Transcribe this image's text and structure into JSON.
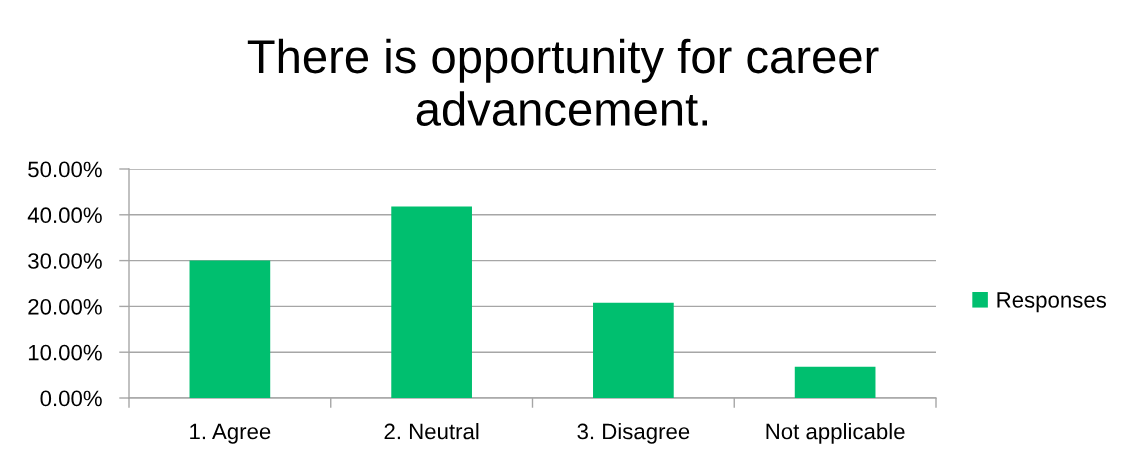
{
  "chart_data": {
    "type": "bar",
    "title": "There is opportunity for career\nadvancement.",
    "categories": [
      "1. Agree",
      "2. Neutral",
      "3. Disagree",
      "Not applicable"
    ],
    "series": [
      {
        "name": "Responses",
        "color": "#00bf6f",
        "values": [
          30.0,
          41.8,
          20.8,
          6.8
        ]
      }
    ],
    "ylim": [
      0,
      50
    ],
    "yticks": [
      {
        "value": 0,
        "label": "0.00%"
      },
      {
        "value": 10,
        "label": "10.00%"
      },
      {
        "value": 20,
        "label": "20.00%"
      },
      {
        "value": 30,
        "label": "30.00%"
      },
      {
        "value": 40,
        "label": "40.00%"
      },
      {
        "value": 50,
        "label": "50.00%"
      }
    ],
    "grid": "y",
    "legend": "right"
  }
}
